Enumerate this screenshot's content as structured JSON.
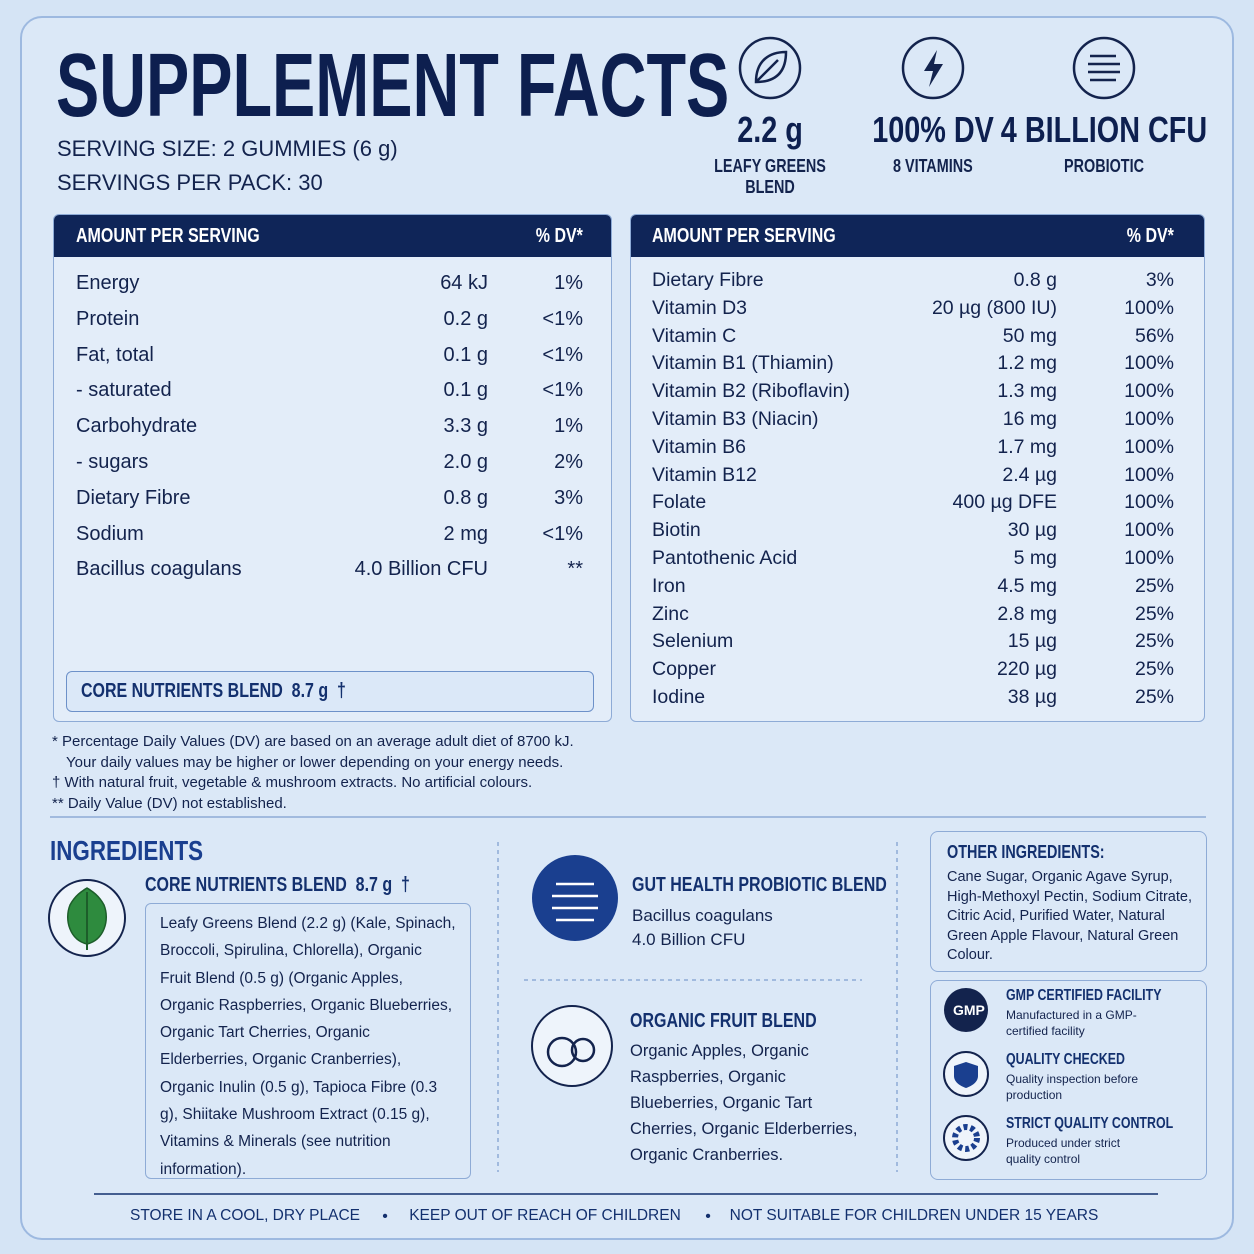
{
  "header": {
    "title": "SUPPLEMENT FACTS",
    "serving_size": "SERVING SIZE: 2 GUMMIES (6 g)",
    "servings_per_pack": "SERVINGS PER PACK: 30"
  },
  "highlights": [
    {
      "value": "2.2 g",
      "label": "LEAFY GREENS BLEND"
    },
    {
      "value": "100% DV",
      "label": "8 VITAMINS"
    },
    {
      "value": "4 BILLION CFU",
      "label": "PROBIOTIC"
    }
  ],
  "nutrition_left": {
    "header": [
      "AMOUNT PER SERVING",
      "% DV*"
    ],
    "rows": [
      [
        "Energy",
        "64 kJ",
        "1%"
      ],
      [
        "Protein",
        "0.2 g",
        "<1%"
      ],
      [
        "Fat, total",
        "0.1 g",
        "<1%"
      ],
      [
        "- saturated",
        "0.1 g",
        "<1%"
      ],
      [
        "Carbohydrate",
        "3.3 g",
        "1%"
      ],
      [
        "- sugars",
        "2.0 g",
        "2%"
      ],
      [
        "Dietary Fibre",
        "0.8 g",
        "3%"
      ],
      [
        "Sodium",
        "2 mg",
        "<1%"
      ],
      [
        "Bacillus coagulans",
        "4.0 Billion CFU",
        "**"
      ]
    ],
    "blend": "CORE NUTRIENTS BLEND  8.7 g  †"
  },
  "nutrition_right": {
    "header": [
      "AMOUNT PER SERVING",
      "% DV*"
    ],
    "rows": [
      [
        "Dietary Fibre",
        "0.8 g",
        "3%"
      ],
      [
        "Vitamin D3",
        "20 µg (800 IU)",
        "100%"
      ],
      [
        "Vitamin C",
        "50 mg",
        "56%"
      ],
      [
        "Vitamin B1 (Thiamin)",
        "1.2 mg",
        "100%"
      ],
      [
        "Vitamin B2 (Riboflavin)",
        "1.3 mg",
        "100%"
      ],
      [
        "Vitamin B3 (Niacin)",
        "16 mg",
        "100%"
      ],
      [
        "Vitamin B6",
        "1.7 mg",
        "100%"
      ],
      [
        "Vitamin B12",
        "2.4 µg",
        "100%"
      ],
      [
        "Folate",
        "400 µg DFE",
        "100%"
      ],
      [
        "Biotin",
        "30 µg",
        "100%"
      ],
      [
        "Pantothenic Acid",
        "5 mg",
        "100%"
      ],
      [
        "Iron",
        "4.5 mg",
        "25%"
      ],
      [
        "Zinc",
        "2.8 mg",
        "25%"
      ],
      [
        "Selenium",
        "15 µg",
        "25%"
      ],
      [
        "Copper",
        "220 µg",
        "25%"
      ],
      [
        "Iodine",
        "38 µg",
        "25%"
      ]
    ]
  },
  "footnotes": [
    "* Percentage Daily Values (DV) are based on an average adult diet of 8700 kJ.",
    "Your daily values may be higher or lower depending on your energy needs.",
    "† With natural fruit, vegetable & mushroom extracts. No artificial colours.",
    "** Daily Value (DV) not established."
  ],
  "ingredients": {
    "title": "INGREDIENTS",
    "core": {
      "title": "CORE NUTRIENTS BLEND  8.7 g  †",
      "text": "Leafy Greens Blend (2.2 g) (Kale, Spinach, Broccoli, Spirulina, Chlorella), Organic Fruit Blend (0.5 g) (Organic Apples, Organic Raspberries, Organic Blueberries, Organic Tart Cherries, Organic Elderberries, Organic Cranberries), Organic Inulin (0.5 g), Tapioca Fibre (0.3 g), Shiitake Mushroom Extract (0.15 g), Vitamins & Minerals (see nutrition information)."
    },
    "gut": {
      "title": "GUT HEALTH PROBIOTIC BLEND",
      "lines": [
        "Bacillus coagulans",
        "4.0 Billion CFU"
      ]
    },
    "fruit": {
      "title": "ORGANIC FRUIT BLEND",
      "text": "Organic Apples, Organic Raspberries, Organic Blueberries, Organic Tart Cherries, Organic Elderberries, Organic Cranberries."
    },
    "other": {
      "title": "OTHER INGREDIENTS:",
      "text": "Cane Sugar, Organic Agave Syrup, High-Methoxyl Pectin, Sodium Citrate, Citric Acid, Purified Water, Natural Green Apple Flavour, Natural Green Colour."
    }
  },
  "badges": [
    {
      "icon": "GMP",
      "title": "GMP CERTIFIED FACILITY",
      "text": "Manufactured in a GMP-certified facility"
    },
    {
      "title": "QUALITY CHECKED",
      "text": "Quality inspection before production"
    },
    {
      "title": "STRICT QUALITY CONTROL",
      "text": "Produced under strict quality control"
    }
  ],
  "footer": [
    "STORE IN A COOL, DRY PLACE",
    "KEEP OUT OF REACH OF CHILDREN",
    "NOT SUITABLE FOR CHILDREN UNDER 15 YEARS"
  ]
}
